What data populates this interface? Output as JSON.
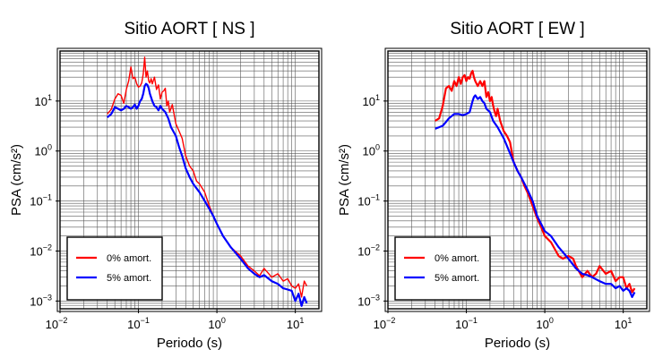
{
  "chart_data": [
    {
      "type": "line",
      "title": "Sitio AORT [ NS ]",
      "xlabel": "Periodo (s)",
      "ylabel": "PSA (cm/s²)",
      "xscale": "log",
      "yscale": "log",
      "xlim": [
        0.01,
        20
      ],
      "ylim": [
        0.0007,
        100
      ],
      "grid": true,
      "legend_position": "bottom-left",
      "x_ticks": [
        {
          "b": "10",
          "e": "−2"
        },
        {
          "b": "10",
          "e": "−1"
        },
        {
          "b": "10",
          "e": "0"
        },
        {
          "b": "10",
          "e": "1"
        }
      ],
      "y_ticks": [
        {
          "b": "10",
          "e": "−3"
        },
        {
          "b": "10",
          "e": "−2"
        },
        {
          "b": "10",
          "e": "−1"
        },
        {
          "b": "10",
          "e": "0"
        },
        {
          "b": "10",
          "e": "1"
        }
      ],
      "series": [
        {
          "name": "0% amort.",
          "color": "#ff0000",
          "x": [
            0.04,
            0.045,
            0.05,
            0.055,
            0.06,
            0.065,
            0.07,
            0.075,
            0.08,
            0.085,
            0.09,
            0.095,
            0.1,
            0.105,
            0.11,
            0.115,
            0.12,
            0.125,
            0.13,
            0.135,
            0.14,
            0.145,
            0.15,
            0.16,
            0.17,
            0.18,
            0.19,
            0.2,
            0.21,
            0.22,
            0.23,
            0.24,
            0.25,
            0.27,
            0.3,
            0.33,
            0.36,
            0.4,
            0.45,
            0.5,
            0.55,
            0.6,
            0.7,
            0.8,
            0.9,
            1.0,
            1.2,
            1.5,
            2.0,
            2.5,
            3.0,
            3.5,
            4.0,
            5.0,
            6.0,
            7.0,
            8.0,
            9.0,
            10.0,
            11.0,
            12.0,
            13.0,
            14.0
          ],
          "y": [
            5.5,
            6.8,
            11,
            14,
            13,
            9,
            17,
            25,
            48,
            28,
            30,
            22,
            19,
            20,
            23,
            35,
            75,
            30,
            40,
            25,
            23,
            28,
            22,
            30,
            17,
            21,
            11,
            15,
            16,
            18,
            8,
            10,
            6,
            8.5,
            3.5,
            2.5,
            1.8,
            0.8,
            0.5,
            0.4,
            0.25,
            0.22,
            0.15,
            0.08,
            0.05,
            0.035,
            0.02,
            0.012,
            0.008,
            0.005,
            0.004,
            0.0032,
            0.0045,
            0.003,
            0.0035,
            0.0025,
            0.0028,
            0.002,
            0.0018,
            0.0022,
            0.0012,
            0.0025,
            0.002
          ]
        },
        {
          "name": "5% amort.",
          "color": "#0000ff",
          "x": [
            0.04,
            0.045,
            0.05,
            0.055,
            0.06,
            0.065,
            0.07,
            0.075,
            0.08,
            0.085,
            0.09,
            0.095,
            0.1,
            0.105,
            0.11,
            0.115,
            0.12,
            0.125,
            0.13,
            0.135,
            0.14,
            0.15,
            0.16,
            0.17,
            0.18,
            0.19,
            0.2,
            0.22,
            0.24,
            0.26,
            0.3,
            0.33,
            0.36,
            0.4,
            0.45,
            0.5,
            0.6,
            0.7,
            0.8,
            0.9,
            1.0,
            1.2,
            1.5,
            2.0,
            2.5,
            3.0,
            3.5,
            4.0,
            5.0,
            6.0,
            7.0,
            8.0,
            9.0,
            10.0,
            11.0,
            12.0,
            13.0,
            14.0
          ],
          "y": [
            4.7,
            5.5,
            7.5,
            7.0,
            6.5,
            7.0,
            8.0,
            7.5,
            7.0,
            7.5,
            8.5,
            7.0,
            8.0,
            10.0,
            11.0,
            14.0,
            20.0,
            22.0,
            21.0,
            18.0,
            14.0,
            10.0,
            8.0,
            7.5,
            6.5,
            8.0,
            7.0,
            6.0,
            4.5,
            3.0,
            2.0,
            1.2,
            0.8,
            0.45,
            0.3,
            0.22,
            0.15,
            0.1,
            0.07,
            0.05,
            0.035,
            0.02,
            0.012,
            0.007,
            0.0045,
            0.0035,
            0.003,
            0.0033,
            0.0025,
            0.0022,
            0.0018,
            0.0017,
            0.0016,
            0.001,
            0.0014,
            0.0008,
            0.0012,
            0.0009
          ]
        }
      ]
    },
    {
      "type": "line",
      "title": "Sitio AORT [ EW ]",
      "xlabel": "Periodo (s)",
      "ylabel": "PSA (cm/s²)",
      "xscale": "log",
      "yscale": "log",
      "xlim": [
        0.01,
        20
      ],
      "ylim": [
        0.0007,
        100
      ],
      "grid": true,
      "legend_position": "bottom-left",
      "x_ticks": [
        {
          "b": "10",
          "e": "−2"
        },
        {
          "b": "10",
          "e": "−1"
        },
        {
          "b": "10",
          "e": "0"
        },
        {
          "b": "10",
          "e": "1"
        }
      ],
      "y_ticks": [
        {
          "b": "10",
          "e": "−3"
        },
        {
          "b": "10",
          "e": "−2"
        },
        {
          "b": "10",
          "e": "−1"
        },
        {
          "b": "10",
          "e": "0"
        },
        {
          "b": "10",
          "e": "1"
        }
      ],
      "series": [
        {
          "name": "0% amort.",
          "color": "#ff0000",
          "x": [
            0.04,
            0.045,
            0.05,
            0.055,
            0.06,
            0.065,
            0.07,
            0.075,
            0.08,
            0.085,
            0.09,
            0.095,
            0.1,
            0.105,
            0.11,
            0.115,
            0.12,
            0.125,
            0.13,
            0.14,
            0.15,
            0.16,
            0.17,
            0.18,
            0.19,
            0.2,
            0.21,
            0.22,
            0.23,
            0.24,
            0.25,
            0.27,
            0.3,
            0.33,
            0.36,
            0.4,
            0.45,
            0.5,
            0.55,
            0.6,
            0.7,
            0.8,
            0.9,
            1.0,
            1.2,
            1.5,
            1.7,
            2.0,
            2.3,
            2.5,
            3.0,
            3.5,
            4.0,
            4.5,
            5.0,
            6.0,
            7.0,
            8.0,
            9.0,
            10.0,
            11.0,
            12.0,
            13.0,
            14.0
          ],
          "y": [
            4.0,
            4.5,
            8.0,
            18,
            20,
            16,
            25,
            20,
            30,
            22,
            30,
            33,
            25,
            30,
            28,
            36,
            40,
            30,
            25,
            20,
            25,
            20,
            25,
            12,
            15,
            10,
            12,
            8,
            6,
            5,
            7,
            4,
            2.5,
            2.0,
            1.5,
            0.6,
            0.4,
            0.3,
            0.2,
            0.15,
            0.08,
            0.045,
            0.03,
            0.02,
            0.015,
            0.008,
            0.007,
            0.008,
            0.007,
            0.005,
            0.003,
            0.004,
            0.003,
            0.0035,
            0.005,
            0.0035,
            0.004,
            0.0025,
            0.003,
            0.003,
            0.0018,
            0.0022,
            0.0015,
            0.0018
          ]
        },
        {
          "name": "5% amort.",
          "color": "#0000ff",
          "x": [
            0.04,
            0.045,
            0.05,
            0.055,
            0.06,
            0.07,
            0.08,
            0.09,
            0.1,
            0.11,
            0.12,
            0.125,
            0.13,
            0.14,
            0.15,
            0.16,
            0.17,
            0.18,
            0.2,
            0.22,
            0.25,
            0.3,
            0.35,
            0.4,
            0.45,
            0.5,
            0.6,
            0.7,
            0.8,
            1.0,
            1.2,
            1.5,
            2.0,
            2.5,
            3.0,
            3.5,
            4.0,
            5.0,
            6.0,
            7.0,
            8.0,
            9.0,
            10.0,
            11.0,
            12.0,
            13.0,
            14.0
          ],
          "y": [
            2.8,
            3.0,
            3.2,
            3.8,
            4.5,
            5.5,
            5.5,
            5.2,
            5.5,
            6.0,
            10,
            12,
            13,
            11,
            12,
            10,
            9,
            7,
            6,
            4,
            3,
            1.8,
            1.0,
            0.6,
            0.4,
            0.3,
            0.17,
            0.1,
            0.05,
            0.025,
            0.02,
            0.012,
            0.007,
            0.0045,
            0.0035,
            0.0033,
            0.003,
            0.0025,
            0.0022,
            0.0022,
            0.0018,
            0.002,
            0.0016,
            0.0018,
            0.0016,
            0.0012,
            0.0015
          ]
        }
      ]
    }
  ]
}
